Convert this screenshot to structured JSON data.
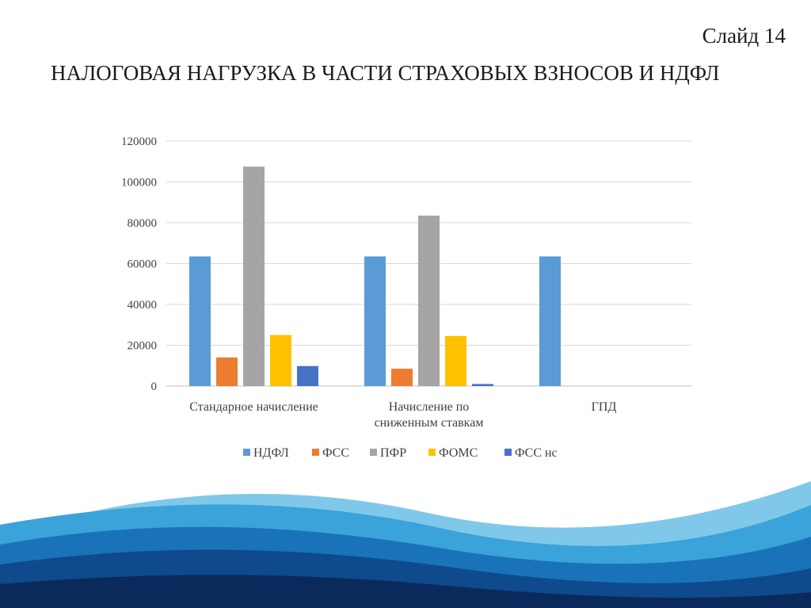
{
  "slide": {
    "number_label": "Слайд 14",
    "title": "НАЛОГОВАЯ НАГРУЗКА В ЧАСТИ СТРАХОВЫХ ВЗНОСОВ И НДФЛ"
  },
  "chart_data": {
    "type": "bar",
    "title": "",
    "xlabel": "",
    "ylabel": "",
    "categories": [
      [
        "Стандарное начисление"
      ],
      [
        "Начисление по",
        "сниженным ставкам"
      ],
      [
        "ГПД"
      ]
    ],
    "series": [
      {
        "name": "НДФЛ",
        "color": "#5b9bd5",
        "values": [
          63500,
          63500,
          63500
        ]
      },
      {
        "name": "ФСС",
        "color": "#ed7d31",
        "values": [
          14000,
          8500,
          0
        ]
      },
      {
        "name": "ПФР",
        "color": "#a5a5a5",
        "values": [
          107500,
          83500,
          0
        ]
      },
      {
        "name": "ФОМС",
        "color": "#ffc000",
        "values": [
          25000,
          24500,
          0
        ]
      },
      {
        "name": "ФСС нс",
        "color": "#4472c4",
        "values": [
          9800,
          1000,
          0
        ]
      }
    ],
    "ylim": [
      0,
      120000
    ],
    "yticks": [
      "0",
      "20000",
      "40000",
      "60000",
      "80000",
      "100000",
      "120000"
    ],
    "grid": true,
    "legend": "bottom"
  },
  "background": {
    "wave_colors": [
      "#0b2a5c",
      "#0e4a8c",
      "#1a73b8",
      "#3aa3d9",
      "#7fc8ea"
    ]
  }
}
